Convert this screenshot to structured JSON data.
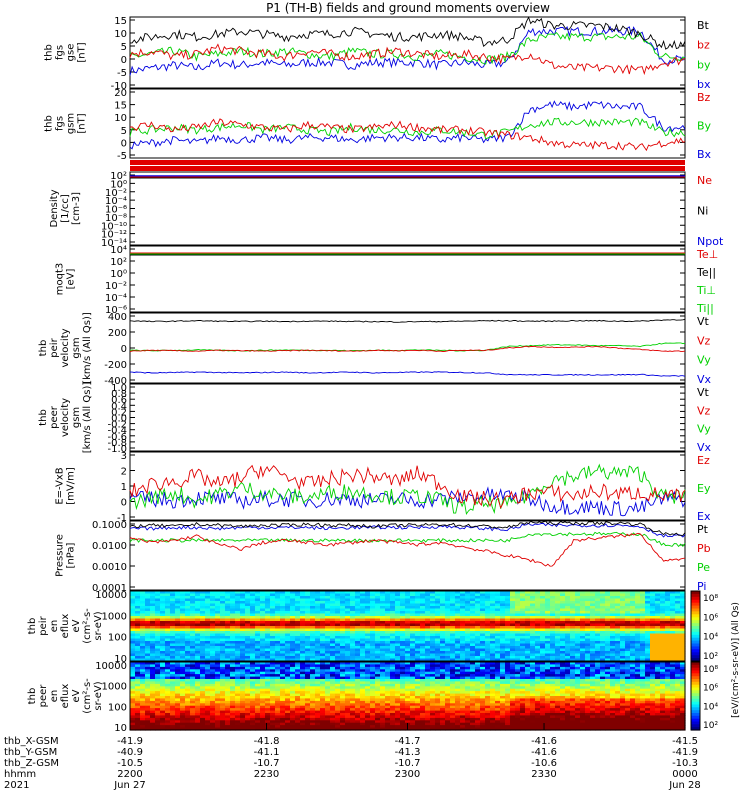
{
  "title": "P1 (TH-B) fields and ground moments overview",
  "colors": {
    "black": "#000000",
    "red": "#e00000",
    "green": "#00d000",
    "blue": "#0000e0"
  },
  "chart_data": [
    {
      "type": "line",
      "ylabel": [
        "thb",
        "fgs",
        "gse",
        "[nT]"
      ],
      "ylim": [
        -10,
        15
      ],
      "yticks": [
        "15",
        "10",
        "5",
        "0",
        "-5",
        "-10"
      ],
      "legend": [
        "Bt",
        "bz",
        "by",
        "bx"
      ],
      "series": [
        {
          "name": "Bt",
          "values": [
            7,
            8,
            9,
            8,
            9,
            10,
            9,
            8,
            9,
            9,
            10,
            9,
            8,
            8,
            9,
            8,
            6,
            7,
            14,
            12,
            12,
            12,
            11,
            9,
            5,
            5
          ]
        },
        {
          "name": "bz",
          "values": [
            2,
            3,
            1,
            2,
            4,
            3,
            2,
            1,
            3,
            2,
            1,
            2,
            3,
            2,
            1,
            2,
            1,
            0,
            2,
            -2,
            -3,
            -3,
            -3,
            -4,
            -1,
            0
          ]
        },
        {
          "name": "by",
          "values": [
            1,
            2,
            3,
            1,
            2,
            3,
            2,
            3,
            2,
            1,
            3,
            2,
            2,
            1,
            2,
            1,
            0,
            1,
            7,
            8,
            8,
            8,
            8,
            8,
            1,
            1
          ]
        },
        {
          "name": "bx",
          "values": [
            -4,
            -3,
            -2,
            -3,
            -1,
            -2,
            -1,
            -2,
            -1,
            -1,
            -2,
            -1,
            -1,
            -1,
            -2,
            -1,
            -2,
            -1,
            10,
            10,
            10,
            10,
            10,
            10,
            0,
            0
          ]
        }
      ]
    },
    {
      "type": "line",
      "ylabel": [
        "thb",
        "fgs",
        "gsm",
        "[nT]"
      ],
      "ylim": [
        -7,
        20
      ],
      "yticks": [
        "20",
        "15",
        "10",
        "5",
        "0",
        "-5"
      ],
      "legend": [
        "Bz",
        "By",
        "Bx"
      ],
      "series": [
        {
          "name": "Bz",
          "values": [
            5,
            6,
            4,
            5,
            7,
            6,
            5,
            4,
            6,
            5,
            4,
            5,
            6,
            5,
            4,
            4,
            3,
            2,
            1,
            -1,
            -2,
            -2,
            -2,
            -3,
            -1,
            0
          ]
        },
        {
          "name": "By",
          "values": [
            3,
            4,
            5,
            4,
            5,
            6,
            4,
            5,
            4,
            3,
            5,
            4,
            4,
            3,
            4,
            3,
            2,
            3,
            6,
            7,
            7,
            7,
            7,
            7,
            3,
            3
          ]
        },
        {
          "name": "Bx",
          "values": [
            -2,
            -1,
            0,
            -1,
            1,
            0,
            1,
            0,
            1,
            1,
            0,
            1,
            1,
            1,
            0,
            1,
            0,
            1,
            12,
            14,
            13,
            14,
            13,
            13,
            5,
            5
          ]
        }
      ]
    },
    {
      "type": "line",
      "ylabel": [
        "Density",
        "[1/cc]",
        "[cm-3]"
      ],
      "ylim": [
        -13,
        2
      ],
      "yticks": [
        "10²",
        "10⁰",
        "10⁻²",
        "10⁻⁴",
        "10⁻⁶",
        "10⁻⁸",
        "10⁻¹⁰",
        "10⁻¹²",
        "10⁻¹⁴"
      ],
      "legend": [
        "Ne",
        "Ni",
        "Npot"
      ]
    },
    {
      "type": "line",
      "ylabel": [
        "moqt3",
        "[eV]"
      ],
      "ylim": [
        -7,
        4
      ],
      "yticks": [
        "10⁴",
        "10²",
        "10⁰",
        "10⁻²",
        "10⁻⁴",
        "10⁻⁶"
      ],
      "legend": [
        "Te⊥",
        "Te||",
        "Ti⊥",
        "Ti||"
      ]
    },
    {
      "type": "line",
      "ylabel": [
        "thb",
        "peir",
        "velocity",
        "gsm",
        "[km/s (All Qs)]"
      ],
      "ylim": [
        -450,
        450
      ],
      "yticks": [
        "400",
        "200",
        "0",
        "-200",
        "-400"
      ],
      "legend": [
        "Vt",
        "Vz",
        "Vy",
        "Vx"
      ],
      "series": [
        {
          "name": "Vt",
          "values": [
            350,
            340,
            345,
            350,
            345,
            340,
            345,
            340,
            345,
            345,
            340,
            340,
            335,
            340,
            340,
            345,
            350,
            350,
            345,
            345,
            350,
            350,
            345,
            345,
            360,
            365
          ]
        },
        {
          "name": "Vz",
          "values": [
            -40,
            -30,
            -35,
            -40,
            -30,
            -35,
            -40,
            -35,
            -30,
            -35,
            -40,
            -30,
            -35,
            -30,
            -40,
            -30,
            -30,
            0,
            20,
            10,
            10,
            20,
            0,
            -20,
            -40,
            -40
          ]
        },
        {
          "name": "Vy",
          "values": [
            -30,
            -35,
            -30,
            -25,
            -30,
            -35,
            -30,
            -25,
            -30,
            -30,
            -35,
            -30,
            -30,
            -25,
            -30,
            -35,
            -30,
            20,
            30,
            40,
            40,
            30,
            30,
            20,
            60,
            60
          ]
        },
        {
          "name": "Vx",
          "values": [
            -310,
            -320,
            -315,
            -310,
            -315,
            -320,
            -315,
            -310,
            -320,
            -315,
            -310,
            -320,
            -315,
            -310,
            -310,
            -315,
            -320,
            -340,
            -345,
            -345,
            -345,
            -345,
            -345,
            -340,
            -360,
            -360
          ]
        }
      ]
    },
    {
      "type": "line",
      "ylabel": [
        "thb",
        "peer",
        "velocity",
        "gsm",
        "[km/s (All Qs)]"
      ],
      "ylim": [
        -1.1,
        1.1
      ],
      "yticks": [
        "1.0",
        "0.8",
        "0.6",
        "0.4",
        "0.2",
        "0.0",
        "-0.2",
        "-0.4",
        "-0.6",
        "-0.8",
        "-1.0"
      ],
      "legend": [
        "Vt",
        "Vz",
        "Vy",
        "Vx"
      ]
    },
    {
      "type": "line",
      "ylabel": [
        "E=-VxB",
        "[mV/m]"
      ],
      "ylim": [
        -1.2,
        3
      ],
      "yticks": [
        "3",
        "2",
        "1",
        "0",
        "-1"
      ],
      "legend": [
        "Ez",
        "Ey",
        "Ex"
      ],
      "series": [
        {
          "name": "Ez",
          "values": [
            0.5,
            1,
            1.2,
            1.5,
            1,
            1.4,
            2,
            1.5,
            1,
            1.3,
            1.6,
            1.5,
            1.2,
            1.7,
            1,
            0.2,
            0.1,
            0,
            0.5,
            0.5,
            0.3,
            0.6,
            0.4,
            0.5,
            0.3,
            0.2
          ]
        },
        {
          "name": "Ey",
          "values": [
            -0.2,
            0.2,
            0.5,
            0,
            0.4,
            0.8,
            0.5,
            0.3,
            0.2,
            0.5,
            0.6,
            0.4,
            0.2,
            0.3,
            0,
            -0.5,
            -0.2,
            -0.3,
            0.4,
            1.3,
            1.5,
            1.8,
            1.7,
            1.7,
            0.2,
            0.3
          ]
        },
        {
          "name": "Ex",
          "values": [
            0.1,
            0.1,
            0,
            0.2,
            0.1,
            0,
            0.1,
            0.1,
            0,
            0.1,
            0.1,
            0,
            0.1,
            0,
            0.1,
            0.2,
            0.3,
            0.3,
            0.1,
            -0.3,
            -0.4,
            -0.4,
            -0.5,
            -0.5,
            0.1,
            0.1
          ]
        }
      ]
    },
    {
      "type": "line",
      "ylabel": [
        "Pressure",
        "[nPa]"
      ],
      "ylim": [
        -4,
        -0.8
      ],
      "yticks": [
        "0.1000",
        "0.0100",
        "0.0010",
        "0.0001"
      ],
      "legend": [
        "Pt",
        "Pb",
        "Pe",
        "Pi"
      ],
      "series": [
        {
          "name": "Pt",
          "values": [
            -1.05,
            -1.0,
            -1.05,
            -0.95,
            -1.0,
            -1.05,
            -1.0,
            -1.0,
            -0.95,
            -1.0,
            -1.0,
            -1.05,
            -1.0,
            -1.0,
            -0.95,
            -1.0,
            -1.05,
            -1.1,
            -0.85,
            -0.9,
            -0.9,
            -0.9,
            -0.9,
            -0.95,
            -1.4,
            -1.4
          ]
        },
        {
          "name": "Pb",
          "values": [
            -1.6,
            -1.8,
            -1.7,
            -1.5,
            -1.9,
            -2.1,
            -1.8,
            -1.7,
            -1.8,
            -1.9,
            -1.8,
            -1.7,
            -1.8,
            -1.9,
            -1.8,
            -2.0,
            -2.2,
            -2.4,
            -2.6,
            -2.9,
            -1.7,
            -1.6,
            -1.5,
            -1.4,
            -2.6,
            -2.6
          ]
        },
        {
          "name": "Pe",
          "values": [
            -1.7,
            -1.7,
            -1.7,
            -1.7,
            -1.7,
            -1.7,
            -1.7,
            -1.7,
            -1.7,
            -1.7,
            -1.7,
            -1.7,
            -1.7,
            -1.7,
            -1.7,
            -1.7,
            -1.7,
            -1.7,
            -1.4,
            -1.4,
            -1.4,
            -1.4,
            -1.4,
            -1.4,
            -1.9,
            -1.9
          ]
        },
        {
          "name": "Pi",
          "values": [
            -1.15,
            -1.15,
            -1.1,
            -1.1,
            -1.15,
            -1.1,
            -1.1,
            -1.1,
            -1.1,
            -1.15,
            -1.1,
            -1.1,
            -1.1,
            -1.1,
            -1.05,
            -1.1,
            -1.15,
            -1.2,
            -0.95,
            -1.0,
            -1.0,
            -1.0,
            -1.0,
            -1.05,
            -1.5,
            -1.5
          ]
        }
      ]
    },
    {
      "type": "heatmap",
      "ylabel": [
        "thb",
        "peir",
        "en",
        "eflux",
        "eV",
        "(cm²-s-",
        "sr-eV)"
      ],
      "yticks": [
        "10000",
        "1000",
        "100",
        "10"
      ]
    },
    {
      "type": "heatmap",
      "ylabel": [
        "thb",
        "peer",
        "en",
        "eflux",
        "eV",
        "(cm²-s-",
        "sr-eV)"
      ],
      "yticks": [
        "10000",
        "1000",
        "100",
        "10"
      ]
    }
  ],
  "colorbar": {
    "ticks": [
      "10⁸",
      "10⁶",
      "10⁴",
      "10²"
    ],
    "ticks2": [
      "10⁸",
      "10⁶",
      "10⁴",
      "10²"
    ],
    "label": "[eV/(cm²-s-sr-eV)] (All Qs)"
  },
  "xaxis": {
    "ticks_labels": [
      "2200",
      "2230",
      "2300",
      "2330",
      "0000"
    ],
    "rows": [
      {
        "label": "thb_X-GSM",
        "values": [
          "-41.9",
          "-41.8",
          "-41.7",
          "-41.6",
          "-41.5"
        ]
      },
      {
        "label": "thb_Y-GSM",
        "values": [
          "-40.9",
          "-41.1",
          "-41.3",
          "-41.6",
          "-41.9"
        ]
      },
      {
        "label": "thb_Z-GSM",
        "values": [
          "-10.5",
          "-10.7",
          "-10.7",
          "-10.6",
          "-10.3"
        ]
      },
      {
        "label": "hhmm",
        "values": [
          "2200",
          "2230",
          "2300",
          "2330",
          "0000"
        ]
      },
      {
        "label": "2021",
        "values": [
          "Jun 27",
          "",
          "",
          "",
          "Jun 28"
        ]
      }
    ]
  }
}
